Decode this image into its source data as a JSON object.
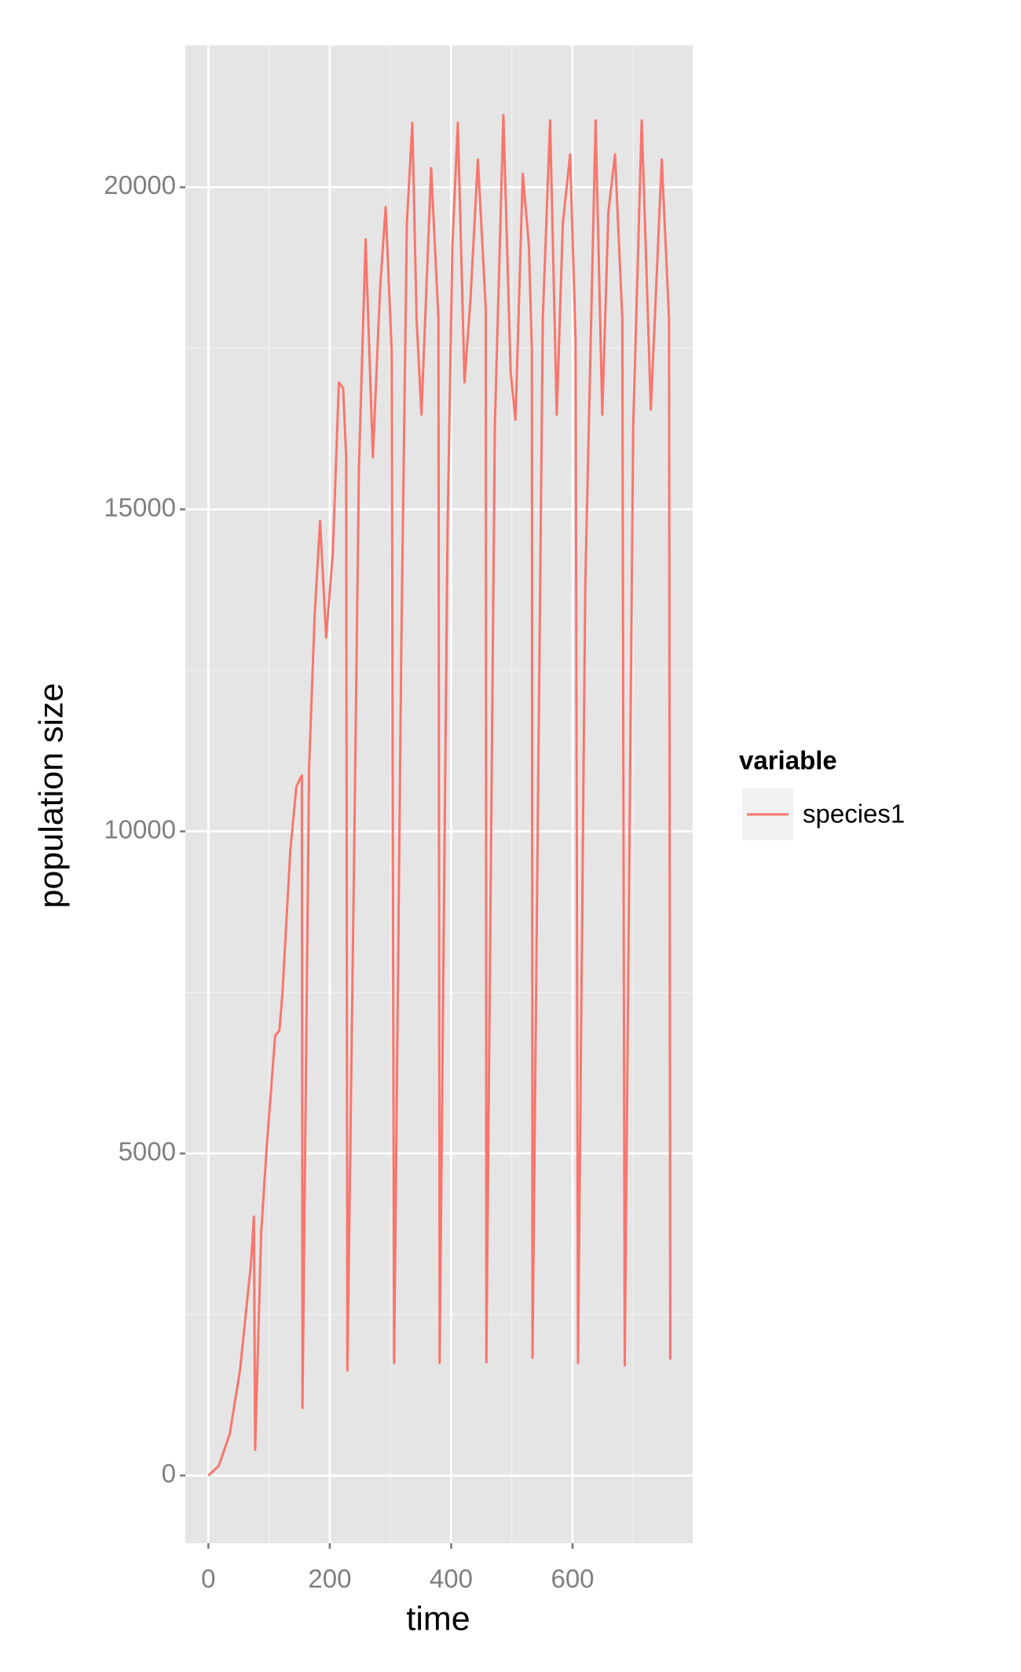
{
  "chart_data": {
    "type": "line",
    "xlabel": "time",
    "ylabel": "population size",
    "legend_title": "variable",
    "legend_position": "right",
    "x": [
      0,
      17,
      35,
      52,
      70,
      75,
      77,
      87,
      96,
      110,
      117,
      122,
      135,
      145,
      154,
      155,
      166,
      175,
      184,
      194,
      205,
      215,
      222,
      227,
      229,
      240,
      248,
      259,
      271,
      283,
      292,
      302,
      306,
      318,
      327,
      336,
      343,
      351,
      367,
      379,
      381,
      394,
      402,
      411,
      422,
      432,
      444,
      457,
      458,
      472,
      486,
      498,
      506,
      518,
      528,
      533,
      534,
      551,
      563,
      574,
      584,
      596,
      605,
      609,
      621,
      638,
      649,
      659,
      670,
      682,
      686,
      700,
      714,
      729,
      747,
      759,
      761
    ],
    "series": [
      {
        "name": "species1",
        "color": "#F8766D",
        "values": [
          0,
          150,
          640,
          1630,
          3280,
          4020,
          400,
          3780,
          5090,
          6830,
          6910,
          7490,
          9710,
          10700,
          10870,
          1050,
          11030,
          13340,
          14820,
          13010,
          14330,
          16970,
          16880,
          15810,
          1630,
          9550,
          15650,
          19190,
          15810,
          18450,
          19690,
          17460,
          1750,
          13010,
          19440,
          21000,
          17960,
          16470,
          20300,
          17960,
          1750,
          14660,
          19100,
          21000,
          16970,
          18290,
          20430,
          18120,
          1760,
          16310,
          21120,
          17130,
          16390,
          20210,
          19110,
          17460,
          1830,
          17960,
          21040,
          16470,
          19440,
          20510,
          17630,
          1750,
          13830,
          21040,
          16470,
          19610,
          20510,
          17960,
          1710,
          16310,
          21040,
          16550,
          20430,
          17960,
          1800
        ]
      }
    ],
    "xlim": [
      -38,
      798
    ],
    "xticks": [
      0,
      200,
      400,
      600
    ],
    "x_minor_ticks": [
      100,
      300,
      500,
      700
    ],
    "ylim": [
      -1050,
      22200
    ],
    "yticks": [
      0,
      5000,
      10000,
      15000,
      20000
    ],
    "y_minor_ticks": [
      2500,
      7500,
      12500,
      17500
    ],
    "grid": true
  }
}
